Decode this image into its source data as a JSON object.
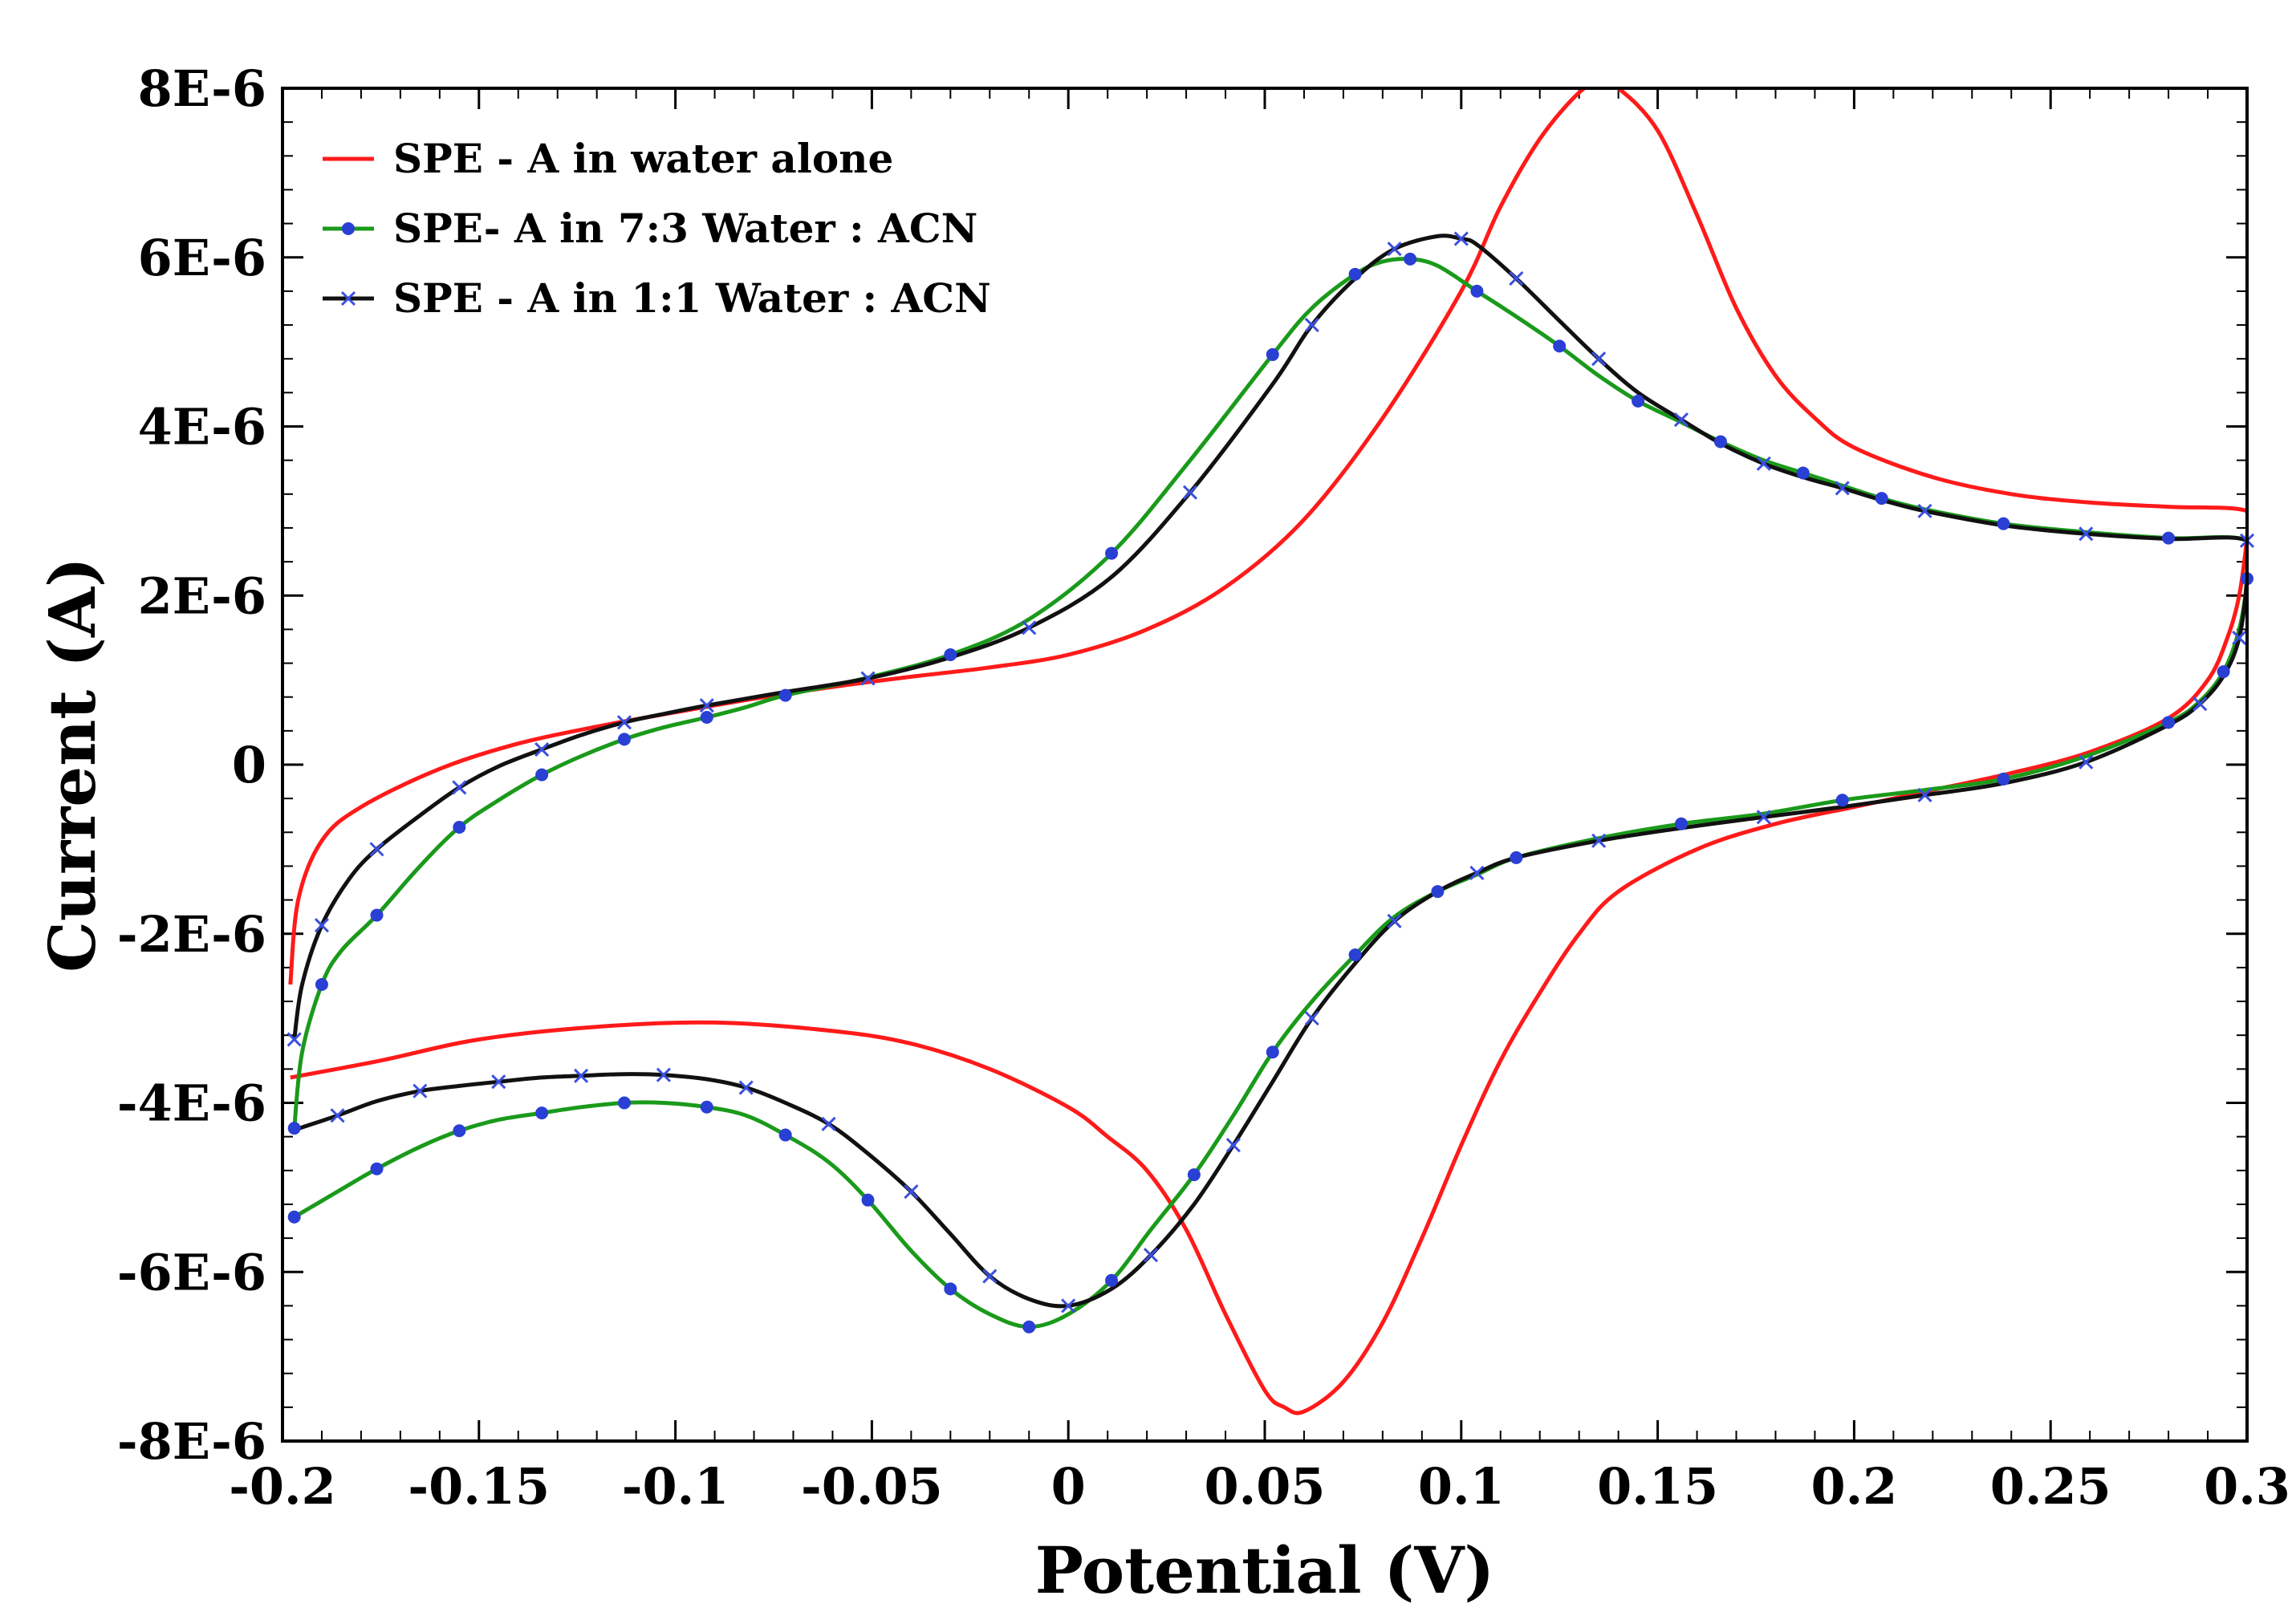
{
  "chart_data": {
    "type": "line",
    "title": "",
    "xlabel": "Potential (V)",
    "ylabel": "Current (A)",
    "xlim": [
      -0.2,
      0.3
    ],
    "ylim": [
      -8e-06,
      8e-06
    ],
    "grid": false,
    "legend_position": "top-left",
    "x_ticks": [
      {
        "value": -0.2,
        "label": "-0.2"
      },
      {
        "value": -0.15,
        "label": "-0.15"
      },
      {
        "value": -0.1,
        "label": "-0.1"
      },
      {
        "value": -0.05,
        "label": "-0.05"
      },
      {
        "value": 0,
        "label": "0"
      },
      {
        "value": 0.05,
        "label": "0.05"
      },
      {
        "value": 0.1,
        "label": "0.1"
      },
      {
        "value": 0.15,
        "label": "0.15"
      },
      {
        "value": 0.2,
        "label": "0.2"
      },
      {
        "value": 0.25,
        "label": "0.25"
      },
      {
        "value": 0.3,
        "label": "0.3"
      }
    ],
    "y_ticks": [
      {
        "value": 8e-06,
        "label": "8E-6"
      },
      {
        "value": 6e-06,
        "label": "6E-6"
      },
      {
        "value": 4e-06,
        "label": "4E-6"
      },
      {
        "value": 2e-06,
        "label": "2E-6"
      },
      {
        "value": 0,
        "label": "0"
      },
      {
        "value": -2e-06,
        "label": "-2E-6"
      },
      {
        "value": -4e-06,
        "label": "-4E-6"
      },
      {
        "value": -6e-06,
        "label": "-6E-6"
      },
      {
        "value": -8e-06,
        "label": "-8E-6"
      }
    ],
    "series": [
      {
        "name": "SPE - A in water alone",
        "color": "#ff1a1a",
        "marker": "none",
        "points": [
          [
            -0.198,
            -2.6e-06
          ],
          [
            -0.196,
            -1.6e-06
          ],
          [
            -0.19,
            -9e-07
          ],
          [
            -0.18,
            -5e-07
          ],
          [
            -0.16,
            -5e-08
          ],
          [
            -0.14,
            2.5e-07
          ],
          [
            -0.12,
            4.5e-07
          ],
          [
            -0.1,
            6.2e-07
          ],
          [
            -0.08,
            7.8e-07
          ],
          [
            -0.06,
            9.2e-07
          ],
          [
            -0.04,
            1.04e-06
          ],
          [
            -0.02,
            1.15e-06
          ],
          [
            0.0,
            1.3e-06
          ],
          [
            0.02,
            1.6e-06
          ],
          [
            0.04,
            2.1e-06
          ],
          [
            0.06,
            2.9e-06
          ],
          [
            0.08,
            4.1e-06
          ],
          [
            0.1,
            5.6e-06
          ],
          [
            0.11,
            6.6e-06
          ],
          [
            0.12,
            7.4e-06
          ],
          [
            0.13,
            7.95e-06
          ],
          [
            0.135,
            8.05e-06
          ],
          [
            0.14,
            8e-06
          ],
          [
            0.15,
            7.5e-06
          ],
          [
            0.16,
            6.5e-06
          ],
          [
            0.17,
            5.4e-06
          ],
          [
            0.18,
            4.6e-06
          ],
          [
            0.19,
            4.1e-06
          ],
          [
            0.2,
            3.75e-06
          ],
          [
            0.22,
            3.4e-06
          ],
          [
            0.24,
            3.2e-06
          ],
          [
            0.26,
            3.1e-06
          ],
          [
            0.28,
            3.05e-06
          ],
          [
            0.3,
            3e-06
          ],
          [
            0.3,
            2.7e-06
          ],
          [
            0.298,
            2e-06
          ],
          [
            0.295,
            1.5e-06
          ],
          [
            0.29,
            1e-06
          ],
          [
            0.28,
            5.5e-07
          ],
          [
            0.26,
            1.5e-07
          ],
          [
            0.24,
            -1e-07
          ],
          [
            0.22,
            -3e-07
          ],
          [
            0.2,
            -5e-07
          ],
          [
            0.18,
            -7e-07
          ],
          [
            0.16,
            -1e-06
          ],
          [
            0.14,
            -1.5e-06
          ],
          [
            0.13,
            -2e-06
          ],
          [
            0.12,
            -2.7e-06
          ],
          [
            0.11,
            -3.5e-06
          ],
          [
            0.1,
            -4.5e-06
          ],
          [
            0.09,
            -5.6e-06
          ],
          [
            0.08,
            -6.6e-06
          ],
          [
            0.07,
            -7.3e-06
          ],
          [
            0.06,
            -7.65e-06
          ],
          [
            0.055,
            -7.6e-06
          ],
          [
            0.05,
            -7.4e-06
          ],
          [
            0.04,
            -6.5e-06
          ],
          [
            0.03,
            -5.5e-06
          ],
          [
            0.02,
            -4.8e-06
          ],
          [
            0.01,
            -4.4e-06
          ],
          [
            0.0,
            -4.05e-06
          ],
          [
            -0.02,
            -3.6e-06
          ],
          [
            -0.04,
            -3.3e-06
          ],
          [
            -0.06,
            -3.15e-06
          ],
          [
            -0.09,
            -3.05e-06
          ],
          [
            -0.12,
            -3.1e-06
          ],
          [
            -0.15,
            -3.25e-06
          ],
          [
            -0.175,
            -3.5e-06
          ],
          [
            -0.198,
            -3.7e-06
          ]
        ]
      },
      {
        "name": "SPE- A in 7:3 Water : ACN",
        "color": "#1a9a1a",
        "marker": "dot",
        "marker_color": "#2a3fd4",
        "points": [
          [
            -0.197,
            -4.3e-06
          ],
          [
            -0.195,
            -3.4e-06
          ],
          [
            -0.19,
            -2.6e-06
          ],
          [
            -0.185,
            -2.2e-06
          ],
          [
            -0.176,
            -1.78e-06
          ],
          [
            -0.165,
            -1.2e-06
          ],
          [
            -0.155,
            -7.4e-07
          ],
          [
            -0.145,
            -4.2e-07
          ],
          [
            -0.134,
            -1.2e-07
          ],
          [
            -0.124,
            1e-07
          ],
          [
            -0.113,
            3e-07
          ],
          [
            -0.103,
            4.4e-07
          ],
          [
            -0.092,
            5.6e-07
          ],
          [
            -0.082,
            6.8e-07
          ],
          [
            -0.072,
            8.2e-07
          ],
          [
            -0.051,
            1.03e-06
          ],
          [
            -0.03,
            1.3e-06
          ],
          [
            -0.01,
            1.72e-06
          ],
          [
            0.011,
            2.5e-06
          ],
          [
            0.031,
            3.6e-06
          ],
          [
            0.052,
            4.85e-06
          ],
          [
            0.062,
            5.4e-06
          ],
          [
            0.073,
            5.8e-06
          ],
          [
            0.08,
            5.95e-06
          ],
          [
            0.087,
            5.98e-06
          ],
          [
            0.094,
            5.9e-06
          ],
          [
            0.104,
            5.6e-06
          ],
          [
            0.114,
            5.3e-06
          ],
          [
            0.125,
            4.95e-06
          ],
          [
            0.135,
            4.6e-06
          ],
          [
            0.145,
            4.3e-06
          ],
          [
            0.156,
            4.05e-06
          ],
          [
            0.166,
            3.82e-06
          ],
          [
            0.177,
            3.6e-06
          ],
          [
            0.187,
            3.45e-06
          ],
          [
            0.197,
            3.3e-06
          ],
          [
            0.207,
            3.15e-06
          ],
          [
            0.218,
            3.02e-06
          ],
          [
            0.238,
            2.85e-06
          ],
          [
            0.259,
            2.75e-06
          ],
          [
            0.28,
            2.68e-06
          ],
          [
            0.3,
            2.65e-06
          ],
          [
            0.3,
            2.2e-06
          ],
          [
            0.298,
            1.6e-06
          ],
          [
            0.294,
            1.1e-06
          ],
          [
            0.288,
            7.5e-07
          ],
          [
            0.28,
            5e-07
          ],
          [
            0.259,
            1e-07
          ],
          [
            0.238,
            -1.7e-07
          ],
          [
            0.218,
            -3e-07
          ],
          [
            0.197,
            -4.2e-07
          ],
          [
            0.177,
            -5.8e-07
          ],
          [
            0.156,
            -7e-07
          ],
          [
            0.135,
            -8.7e-07
          ],
          [
            0.114,
            -1.1e-06
          ],
          [
            0.104,
            -1.3e-06
          ],
          [
            0.094,
            -1.5e-06
          ],
          [
            0.083,
            -1.8e-06
          ],
          [
            0.073,
            -2.25e-06
          ],
          [
            0.062,
            -2.8e-06
          ],
          [
            0.052,
            -3.4e-06
          ],
          [
            0.042,
            -4.15e-06
          ],
          [
            0.032,
            -4.85e-06
          ],
          [
            0.021,
            -5.5e-06
          ],
          [
            0.011,
            -6.1e-06
          ],
          [
            0.0,
            -6.5e-06
          ],
          [
            -0.01,
            -6.65e-06
          ],
          [
            -0.02,
            -6.5e-06
          ],
          [
            -0.03,
            -6.2e-06
          ],
          [
            -0.04,
            -5.75e-06
          ],
          [
            -0.051,
            -5.15e-06
          ],
          [
            -0.061,
            -4.7e-06
          ],
          [
            -0.072,
            -4.38e-06
          ],
          [
            -0.082,
            -4.15e-06
          ],
          [
            -0.092,
            -4.05e-06
          ],
          [
            -0.103,
            -4e-06
          ],
          [
            -0.113,
            -4e-06
          ],
          [
            -0.124,
            -4.05e-06
          ],
          [
            -0.134,
            -4.12e-06
          ],
          [
            -0.145,
            -4.2e-06
          ],
          [
            -0.155,
            -4.33e-06
          ],
          [
            -0.165,
            -4.52e-06
          ],
          [
            -0.176,
            -4.78e-06
          ],
          [
            -0.186,
            -5.05e-06
          ],
          [
            -0.197,
            -5.35e-06
          ]
        ]
      },
      {
        "name": "SPE - A in 1:1 Water : ACN",
        "color": "#111111",
        "marker": "cross",
        "marker_color": "#3a4fe0",
        "points": [
          [
            -0.197,
            -3.25e-06
          ],
          [
            -0.195,
            -2.6e-06
          ],
          [
            -0.19,
            -1.9e-06
          ],
          [
            -0.183,
            -1.35e-06
          ],
          [
            -0.176,
            -1e-06
          ],
          [
            -0.165,
            -6e-07
          ],
          [
            -0.155,
            -2.7e-07
          ],
          [
            -0.145,
            -2e-08
          ],
          [
            -0.134,
            1.8e-07
          ],
          [
            -0.124,
            3.5e-07
          ],
          [
            -0.113,
            5e-07
          ],
          [
            -0.103,
            6e-07
          ],
          [
            -0.092,
            7e-07
          ],
          [
            -0.072,
            8.6e-07
          ],
          [
            -0.051,
            1.02e-06
          ],
          [
            -0.03,
            1.27e-06
          ],
          [
            -0.01,
            1.62e-06
          ],
          [
            0.011,
            2.22e-06
          ],
          [
            0.031,
            3.22e-06
          ],
          [
            0.052,
            4.5e-06
          ],
          [
            0.062,
            5.2e-06
          ],
          [
            0.073,
            5.75e-06
          ],
          [
            0.083,
            6.1e-06
          ],
          [
            0.094,
            6.25e-06
          ],
          [
            0.1,
            6.22e-06
          ],
          [
            0.104,
            6.15e-06
          ],
          [
            0.114,
            5.75e-06
          ],
          [
            0.125,
            5.25e-06
          ],
          [
            0.135,
            4.8e-06
          ],
          [
            0.145,
            4.4e-06
          ],
          [
            0.156,
            4.08e-06
          ],
          [
            0.166,
            3.8e-06
          ],
          [
            0.177,
            3.56e-06
          ],
          [
            0.187,
            3.4e-06
          ],
          [
            0.197,
            3.27e-06
          ],
          [
            0.207,
            3.13e-06
          ],
          [
            0.218,
            3e-06
          ],
          [
            0.238,
            2.83e-06
          ],
          [
            0.259,
            2.73e-06
          ],
          [
            0.28,
            2.67e-06
          ],
          [
            0.3,
            2.65e-06
          ],
          [
            0.3,
            2.2e-06
          ],
          [
            0.298,
            1.5e-06
          ],
          [
            0.294,
            1.05e-06
          ],
          [
            0.288,
            7.2e-07
          ],
          [
            0.28,
            4.7e-07
          ],
          [
            0.259,
            3e-08
          ],
          [
            0.238,
            -2.2e-07
          ],
          [
            0.218,
            -3.6e-07
          ],
          [
            0.197,
            -5e-07
          ],
          [
            0.177,
            -6.2e-07
          ],
          [
            0.156,
            -7.5e-07
          ],
          [
            0.135,
            -9e-07
          ],
          [
            0.114,
            -1.1e-06
          ],
          [
            0.104,
            -1.28e-06
          ],
          [
            0.094,
            -1.5e-06
          ],
          [
            0.083,
            -1.85e-06
          ],
          [
            0.073,
            -2.35e-06
          ],
          [
            0.062,
            -3e-06
          ],
          [
            0.052,
            -3.75e-06
          ],
          [
            0.042,
            -4.5e-06
          ],
          [
            0.032,
            -5.2e-06
          ],
          [
            0.021,
            -5.8e-06
          ],
          [
            0.011,
            -6.2e-06
          ],
          [
            0.0,
            -6.4e-06
          ],
          [
            -0.01,
            -6.32e-06
          ],
          [
            -0.02,
            -6.05e-06
          ],
          [
            -0.03,
            -5.55e-06
          ],
          [
            -0.04,
            -5.05e-06
          ],
          [
            -0.051,
            -4.6e-06
          ],
          [
            -0.061,
            -4.25e-06
          ],
          [
            -0.072,
            -4e-06
          ],
          [
            -0.082,
            -3.82e-06
          ],
          [
            -0.092,
            -3.72e-06
          ],
          [
            -0.103,
            -3.67e-06
          ],
          [
            -0.113,
            -3.66e-06
          ],
          [
            -0.124,
            -3.68e-06
          ],
          [
            -0.134,
            -3.7e-06
          ],
          [
            -0.145,
            -3.75e-06
          ],
          [
            -0.155,
            -3.8e-06
          ],
          [
            -0.165,
            -3.86e-06
          ],
          [
            -0.176,
            -3.98e-06
          ],
          [
            -0.186,
            -4.15e-06
          ],
          [
            -0.197,
            -4.32e-06
          ]
        ]
      }
    ]
  }
}
